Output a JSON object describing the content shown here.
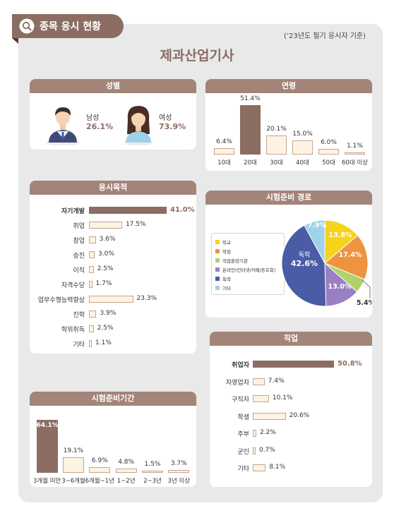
{
  "header": {
    "tag": "종목 응시 현황",
    "note": "(’23년도 필기 응시자 기준)",
    "title": "제과산업기사"
  },
  "colors": {
    "accent": "#8c6d63",
    "header_bg": "#a28479",
    "bar_fill": "#fdf3e2",
    "bar_border": "#c9a28f"
  },
  "gender": {
    "title": "성별",
    "male": {
      "label": "남성",
      "value": "26.1%"
    },
    "female": {
      "label": "여성",
      "value": "73.9%"
    }
  },
  "chart_data": [
    {
      "id": "age",
      "type": "bar",
      "title": "연령",
      "categories": [
        "10대",
        "20대",
        "30대",
        "40대",
        "50대",
        "60대 이상"
      ],
      "values": [
        6.4,
        51.4,
        20.1,
        15.0,
        6.0,
        1.1
      ],
      "value_labels": [
        "6.4%",
        "51.4%",
        "20.1%",
        "15.0%",
        "6.0%",
        "1.1%"
      ],
      "highlight": 1
    },
    {
      "id": "purpose",
      "type": "bar",
      "orientation": "horizontal",
      "title": "응시목적",
      "categories": [
        "자기개발",
        "취업",
        "창업",
        "승진",
        "이직",
        "자격수당",
        "업무수행능력향상",
        "진학",
        "학위취득",
        "기타"
      ],
      "values": [
        41.0,
        17.5,
        3.6,
        3.0,
        2.5,
        1.7,
        23.3,
        3.9,
        2.5,
        1.1
      ],
      "value_labels": [
        "41.0%",
        "17.5%",
        "3.6%",
        "3.0%",
        "2.5%",
        "1.7%",
        "23.3%",
        "3.9%",
        "2.5%",
        "1.1%"
      ],
      "highlight": 0
    },
    {
      "id": "route",
      "type": "pie",
      "title": "시험준비 경로",
      "categories": [
        "학교",
        "학원",
        "직업훈련기관",
        "온라인(인터넷/카페/동호회)",
        "독학",
        "기타"
      ],
      "values": [
        13.8,
        17.4,
        5.4,
        13.0,
        42.6,
        7.9
      ],
      "value_labels": [
        "13.8%",
        "17.4%",
        "5.4%",
        "13.0%",
        "42.6%",
        "7.9%"
      ],
      "colors": [
        "#f6d21a",
        "#ee9440",
        "#aed36b",
        "#9a7fc2",
        "#4a5ca6",
        "#9fd1ea"
      ],
      "inner_label": "독학",
      "legend": "left"
    },
    {
      "id": "job",
      "type": "bar",
      "orientation": "horizontal",
      "title": "직업",
      "categories": [
        "취업자",
        "자영업자",
        "구직자",
        "학생",
        "주부",
        "군인",
        "기타"
      ],
      "values": [
        50.8,
        7.4,
        10.1,
        20.6,
        2.2,
        0.7,
        8.1
      ],
      "value_labels": [
        "50.8%",
        "7.4%",
        "10.1%",
        "20.6%",
        "2.2%",
        "0.7%",
        "8.1%"
      ],
      "highlight": 0
    },
    {
      "id": "period",
      "type": "bar",
      "title": "시험준비기간",
      "categories": [
        "3개월 미만",
        "3~6개월",
        "6개월~1년",
        "1~2년",
        "2~3년",
        "3년 이상"
      ],
      "values": [
        64.1,
        19.1,
        6.9,
        4.8,
        1.5,
        3.7
      ],
      "value_labels": [
        "64.1%",
        "19.1%",
        "6.9%",
        "4.8%",
        "1.5%",
        "3.7%"
      ],
      "highlight": 0
    }
  ]
}
